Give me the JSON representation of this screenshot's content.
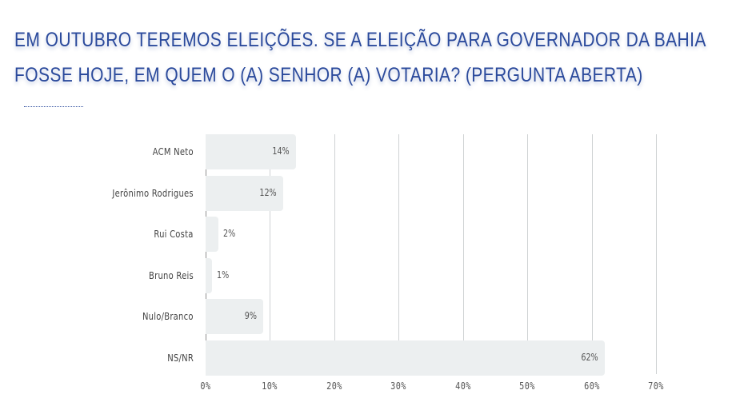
{
  "title": {
    "line1": "EM OUTUBRO TEREMOS ELEIÇÕES. SE A ELEIÇÃO PARA GOVERNADOR DA BAHIA",
    "line2": "FOSSE HOJE, EM QUEM O (A) SENHOR (A) VOTARIA? (PERGUNTA ABERTA)"
  },
  "colors": {
    "title": "#2b4a9c",
    "bar": "#eceff0",
    "grid": "#cfd2d4"
  },
  "chart_data": {
    "type": "bar",
    "orientation": "horizontal",
    "title": "EM OUTUBRO TEREMOS ELEIÇÕES. SE A ELEIÇÃO PARA GOVERNADOR DA BAHIA FOSSE HOJE, EM QUEM O (A) SENHOR (A) VOTARIA? (PERGUNTA ABERTA)",
    "categories": [
      "ACM Neto",
      "Jerônimo Rodrigues",
      "Rui Costa",
      "Bruno Reis",
      "Nulo/Branco",
      "NS/NR"
    ],
    "values": [
      14,
      12,
      2,
      1,
      9,
      62
    ],
    "value_labels": [
      "14%",
      "12%",
      "2%",
      "1%",
      "9%",
      "62%"
    ],
    "xlabel": "",
    "ylabel": "",
    "xlim": [
      0,
      70
    ],
    "xticks": [
      "0%",
      "10%",
      "20%",
      "30%",
      "40%",
      "50%",
      "60%",
      "70%"
    ],
    "grid": true,
    "legend": "none"
  }
}
